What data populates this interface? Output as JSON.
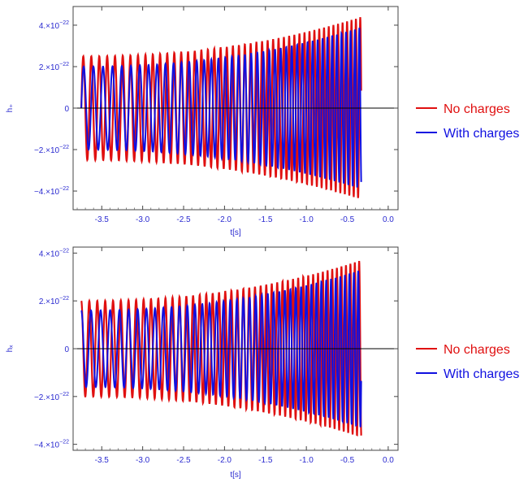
{
  "chart_data": [
    {
      "type": "line",
      "title": "",
      "xlabel": "t[s]",
      "ylabel": "h₊",
      "xlim": [
        -3.85,
        0.12
      ],
      "ylim": [
        -4.9e-22,
        4.9e-22
      ],
      "x_ticks": [
        -3.5,
        -3.0,
        -2.5,
        -2.0,
        -1.5,
        -1.0,
        -0.5,
        0.0
      ],
      "x_tick_labels": [
        "-3.5",
        "-3.0",
        "-2.5",
        "-2.0",
        "-1.5",
        "-1.0",
        "-0.5",
        "0.0"
      ],
      "y_ticks": [
        -4e-22,
        -2e-22,
        0,
        2e-22,
        4e-22
      ],
      "y_tick_labels": [
        {
          "base": "−4.×10",
          "exp": "−22"
        },
        {
          "base": "−2.×10",
          "exp": "−22"
        },
        {
          "base": "0",
          "exp": ""
        },
        {
          "base": "2.×10",
          "exp": "−22"
        },
        {
          "base": "4.×10",
          "exp": "−22"
        }
      ],
      "grid": false,
      "legend_position": "right",
      "series": [
        {
          "name": "No charges",
          "color": "#e01010",
          "t_start": -3.75,
          "t_end": -0.33,
          "amplitude_start": 2.5e-22,
          "amplitude_end": 4.4e-22,
          "frequency_start_hz": 10.2,
          "frequency_end_hz": 19.0,
          "phase": "sine"
        },
        {
          "name": "With charges",
          "color": "#1010e0",
          "t_start": -3.75,
          "t_end": -0.33,
          "amplitude_start": 2e-22,
          "amplitude_end": 3.9e-22,
          "frequency_start_hz": 8.4,
          "frequency_end_hz": 19.0,
          "phase": "sine"
        }
      ]
    },
    {
      "type": "line",
      "title": "",
      "xlabel": "t[s]",
      "ylabel": "hₓ",
      "xlim": [
        -3.85,
        0.12
      ],
      "ylim": [
        -4.25e-22,
        4.25e-22
      ],
      "x_ticks": [
        -3.5,
        -3.0,
        -2.5,
        -2.0,
        -1.5,
        -1.0,
        -0.5,
        0.0
      ],
      "x_tick_labels": [
        "-3.5",
        "-3.0",
        "-2.5",
        "-2.0",
        "-1.5",
        "-1.0",
        "-0.5",
        "0.0"
      ],
      "y_ticks": [
        -4e-22,
        -2e-22,
        0,
        2e-22,
        4e-22
      ],
      "y_tick_labels": [
        {
          "base": "−4.×10",
          "exp": "−22"
        },
        {
          "base": "−2.×10",
          "exp": "−22"
        },
        {
          "base": "0",
          "exp": ""
        },
        {
          "base": "2.×10",
          "exp": "−22"
        },
        {
          "base": "4.×10",
          "exp": "−22"
        }
      ],
      "grid": false,
      "legend_position": "right",
      "series": [
        {
          "name": "No charges",
          "color": "#e01010",
          "t_start": -3.75,
          "t_end": -0.33,
          "amplitude_start": 2e-22,
          "amplitude_end": 3.7e-22,
          "frequency_start_hz": 10.2,
          "frequency_end_hz": 19.0,
          "phase": "cosine"
        },
        {
          "name": "With charges",
          "color": "#1010e0",
          "t_start": -3.75,
          "t_end": -0.33,
          "amplitude_start": 1.6e-22,
          "amplitude_end": 3.3e-22,
          "frequency_start_hz": 8.4,
          "frequency_end_hz": 19.0,
          "phase": "cosine"
        }
      ]
    }
  ],
  "legend": {
    "entries": [
      {
        "label": "No charges",
        "color": "#e01010"
      },
      {
        "label": "With charges",
        "color": "#1010e0"
      }
    ]
  }
}
